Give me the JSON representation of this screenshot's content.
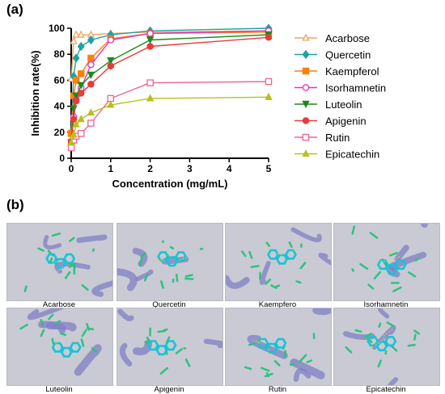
{
  "panel_a_label": "(a)",
  "panel_b_label": "(b)",
  "chart_data": {
    "type": "line",
    "xlabel": "Concentration (mg/mL)",
    "ylabel": "Inhibition rate(%)",
    "xlim": [
      0,
      5
    ],
    "ylim": [
      0,
      100
    ],
    "xticks": [
      0,
      1,
      2,
      3,
      4,
      5
    ],
    "yticks": [
      0,
      20,
      40,
      60,
      80,
      100
    ],
    "legend_position": "right",
    "grid": false,
    "x": [
      0,
      0.0625,
      0.125,
      0.25,
      0.5,
      1,
      2,
      5
    ],
    "series": [
      {
        "name": "Acarbose",
        "color": "#f4a460",
        "marker": "triangle-open",
        "values": [
          61,
          90,
          95,
          95,
          95,
          96,
          97,
          98
        ]
      },
      {
        "name": "Quercetin",
        "color": "#1aa3a3",
        "marker": "diamond",
        "values": [
          20,
          63,
          77,
          86,
          91,
          95,
          98,
          100
        ]
      },
      {
        "name": "Kaempferol",
        "color": "#ff7f0e",
        "marker": "square",
        "values": [
          19,
          48,
          60,
          65,
          77,
          92,
          96,
          97
        ]
      },
      {
        "name": "Isorhamnetin",
        "color": "#e033c4",
        "marker": "circle-open",
        "values": [
          11,
          32,
          45,
          54,
          72,
          91,
          96,
          98
        ]
      },
      {
        "name": "Luteolin",
        "color": "#1b8a1b",
        "marker": "triangle-down",
        "values": [
          12,
          38,
          48,
          56,
          64,
          75,
          91,
          95
        ]
      },
      {
        "name": "Apigenin",
        "color": "#e83b3b",
        "marker": "circle",
        "values": [
          13,
          30,
          44,
          50,
          57,
          71,
          86,
          93
        ]
      },
      {
        "name": "Rutin",
        "color": "#f06292",
        "marker": "square-open",
        "values": [
          8,
          14,
          17,
          19,
          27,
          46,
          58,
          59
        ]
      },
      {
        "name": "Epicatechin",
        "color": "#b7c11a",
        "marker": "triangle",
        "values": [
          12,
          18,
          26,
          30,
          35,
          41,
          46,
          47
        ]
      }
    ]
  },
  "docking_panels": [
    {
      "label": "Acarbose"
    },
    {
      "label": "Quercetin"
    },
    {
      "label": "Kaempfero"
    },
    {
      "label": "Isorhamnetin"
    },
    {
      "label": "Luteolin"
    },
    {
      "label": "Apigenin"
    },
    {
      "label": "Rutin"
    },
    {
      "label": "Epicatechin"
    }
  ]
}
